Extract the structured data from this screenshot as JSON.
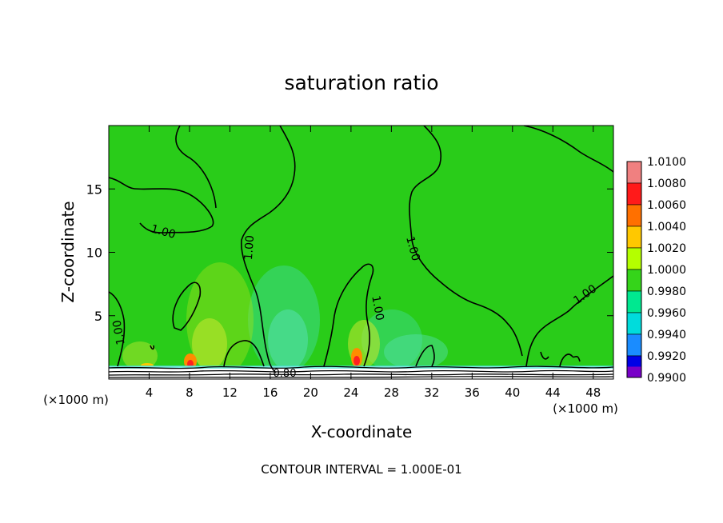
{
  "chart_data": {
    "type": "heatmap",
    "title": "saturation ratio",
    "xlabel": "X-coordinate",
    "ylabel": "Z-coordinate",
    "x_unit": "(×1000 m)",
    "x_unit_right": "(×1000 m)",
    "xlim": [
      0,
      50
    ],
    "ylim": [
      0,
      20
    ],
    "x_ticks": [
      "4",
      "8",
      "12",
      "16",
      "20",
      "24",
      "28",
      "32",
      "36",
      "40",
      "44",
      "48"
    ],
    "y_ticks": [
      "5",
      "10",
      "15"
    ],
    "footer": "CONTOUR INTERVAL = 1.000E-01",
    "colorbar": {
      "levels": [
        "1.0100",
        "1.0080",
        "1.0060",
        "1.0040",
        "1.0020",
        "1.0000",
        "0.9980",
        "0.9960",
        "0.9940",
        "0.9920",
        "0.9900"
      ]
    },
    "contour_labels": [
      "1.00",
      "1.00",
      "1.00",
      "1.00",
      "1.00",
      "1.00",
      "0.80"
    ]
  },
  "colors": {
    "field": "#29cc19",
    "contour": "#000000",
    "colorbar_bands": [
      "#f08080",
      "#ff1a1a",
      "#ff7000",
      "#ffc800",
      "#b4ff00",
      "#35d41a",
      "#00e890",
      "#00dcdc",
      "#1a8cff",
      "#0000e6",
      "#7800c8"
    ]
  }
}
